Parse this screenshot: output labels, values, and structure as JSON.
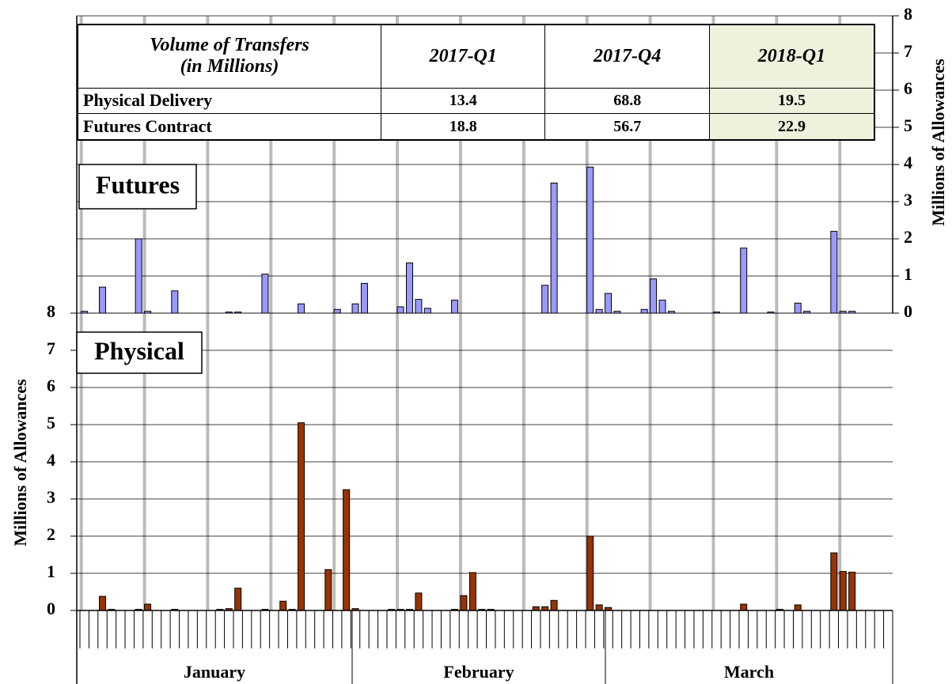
{
  "table": {
    "header": [
      [
        "Volume of Transfers",
        "(in Millions)"
      ],
      "2017-Q1",
      "2017-Q4",
      "2018-Q1"
    ],
    "rows": [
      [
        "Physical Delivery",
        13.4,
        68.8,
        19.5
      ],
      [
        "Futures Contract",
        18.8,
        56.7,
        22.9
      ]
    ]
  },
  "chart_data": [
    {
      "type": "bar",
      "title": "Futures",
      "color": "#9999ff",
      "y2_label": "Millions of Allowances",
      "y2lim": [
        0,
        8
      ],
      "y2ticks": [
        0,
        1,
        2,
        3,
        4,
        5,
        6,
        7,
        8
      ],
      "grid": true,
      "values": [
        0.05,
        null,
        0.7,
        null,
        null,
        null,
        2.0,
        0.05,
        null,
        null,
        0.6,
        null,
        null,
        null,
        null,
        null,
        0.03,
        0.03,
        null,
        null,
        1.05,
        null,
        null,
        null,
        0.25,
        null,
        null,
        null,
        0.1,
        null,
        0.25,
        0.8,
        null,
        null,
        null,
        0.17,
        1.35,
        0.37,
        0.13,
        null,
        null,
        0.35,
        null,
        null,
        null,
        null,
        null,
        null,
        null,
        null,
        null,
        0.75,
        3.5,
        null,
        null,
        null,
        3.93,
        0.1,
        0.53,
        0.05,
        null,
        null,
        0.1,
        0.92,
        0.35,
        0.05,
        null,
        null,
        null,
        null,
        0.03,
        null,
        null,
        1.75,
        null,
        null,
        0.03,
        null,
        null,
        0.27,
        0.05,
        null,
        null,
        2.2,
        0.05,
        0.05,
        null,
        null,
        null,
        null
      ]
    },
    {
      "type": "bar",
      "title": "Physical",
      "color": "#993300",
      "y_label": "Millions of Allowances",
      "ylim": [
        0,
        8
      ],
      "yticks": [
        0,
        1,
        2,
        3,
        4,
        5,
        6,
        7,
        8
      ],
      "grid": true,
      "x_groups": [
        "January",
        "February",
        "March"
      ],
      "categories": [
        null,
        null,
        null,
        null,
        null,
        null,
        null,
        null,
        null,
        null,
        null,
        null,
        null,
        null,
        null,
        null,
        null,
        null,
        null,
        null,
        null,
        null,
        null,
        null,
        null,
        null,
        null,
        null,
        null,
        null,
        null,
        null,
        null,
        null,
        null,
        null,
        null,
        null,
        null,
        null,
        null,
        null,
        null,
        null,
        null,
        null,
        null,
        null,
        null,
        null,
        null,
        null,
        null,
        null,
        null,
        null,
        null,
        null,
        null,
        null,
        null,
        null,
        null,
        null,
        null,
        null,
        null,
        null,
        null,
        null,
        null,
        null,
        null,
        null,
        null,
        null,
        null,
        null,
        null,
        null,
        null,
        null,
        null,
        null,
        null,
        null,
        null,
        null,
        null,
        null
      ],
      "values": [
        null,
        null,
        0.38,
        0.03,
        null,
        null,
        0.03,
        0.17,
        null,
        null,
        0.03,
        null,
        null,
        null,
        null,
        0.03,
        0.05,
        0.6,
        null,
        null,
        0.03,
        null,
        0.25,
        0.03,
        5.05,
        null,
        null,
        1.1,
        null,
        3.25,
        0.05,
        null,
        null,
        null,
        0.03,
        0.03,
        0.03,
        0.47,
        null,
        null,
        null,
        0.03,
        0.4,
        1.02,
        0.03,
        0.03,
        null,
        null,
        null,
        null,
        0.1,
        0.1,
        0.27,
        null,
        null,
        null,
        2.0,
        0.15,
        0.08,
        null,
        null,
        null,
        null,
        null,
        null,
        null,
        null,
        null,
        null,
        null,
        null,
        null,
        null,
        0.17,
        null,
        null,
        null,
        0.03,
        null,
        0.15,
        null,
        null,
        null,
        1.55,
        1.05,
        1.03,
        null,
        null,
        null,
        null
      ]
    }
  ]
}
